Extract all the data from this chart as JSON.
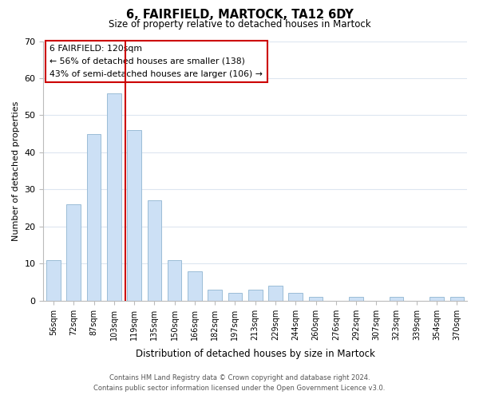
{
  "title": "6, FAIRFIELD, MARTOCK, TA12 6DY",
  "subtitle": "Size of property relative to detached houses in Martock",
  "xlabel": "Distribution of detached houses by size in Martock",
  "ylabel": "Number of detached properties",
  "bar_labels": [
    "56sqm",
    "72sqm",
    "87sqm",
    "103sqm",
    "119sqm",
    "135sqm",
    "150sqm",
    "166sqm",
    "182sqm",
    "197sqm",
    "213sqm",
    "229sqm",
    "244sqm",
    "260sqm",
    "276sqm",
    "292sqm",
    "307sqm",
    "323sqm",
    "339sqm",
    "354sqm",
    "370sqm"
  ],
  "bar_heights": [
    11,
    26,
    45,
    56,
    46,
    27,
    11,
    8,
    3,
    2,
    3,
    4,
    2,
    1,
    0,
    1,
    0,
    1,
    0,
    1,
    1
  ],
  "bar_color": "#cce0f5",
  "bar_edge_color": "#9bbdd6",
  "ylim": [
    0,
    70
  ],
  "yticks": [
    0,
    10,
    20,
    30,
    40,
    50,
    60,
    70
  ],
  "vline_color": "#cc0000",
  "annotation_title": "6 FAIRFIELD: 120sqm",
  "annotation_line1": "← 56% of detached houses are smaller (138)",
  "annotation_line2": "43% of semi-detached houses are larger (106) →",
  "annotation_box_color": "#ffffff",
  "annotation_box_edge": "#cc0000",
  "footer1": "Contains HM Land Registry data © Crown copyright and database right 2024.",
  "footer2": "Contains public sector information licensed under the Open Government Licence v3.0.",
  "bg_color": "#ffffff",
  "grid_color": "#dde6f0"
}
